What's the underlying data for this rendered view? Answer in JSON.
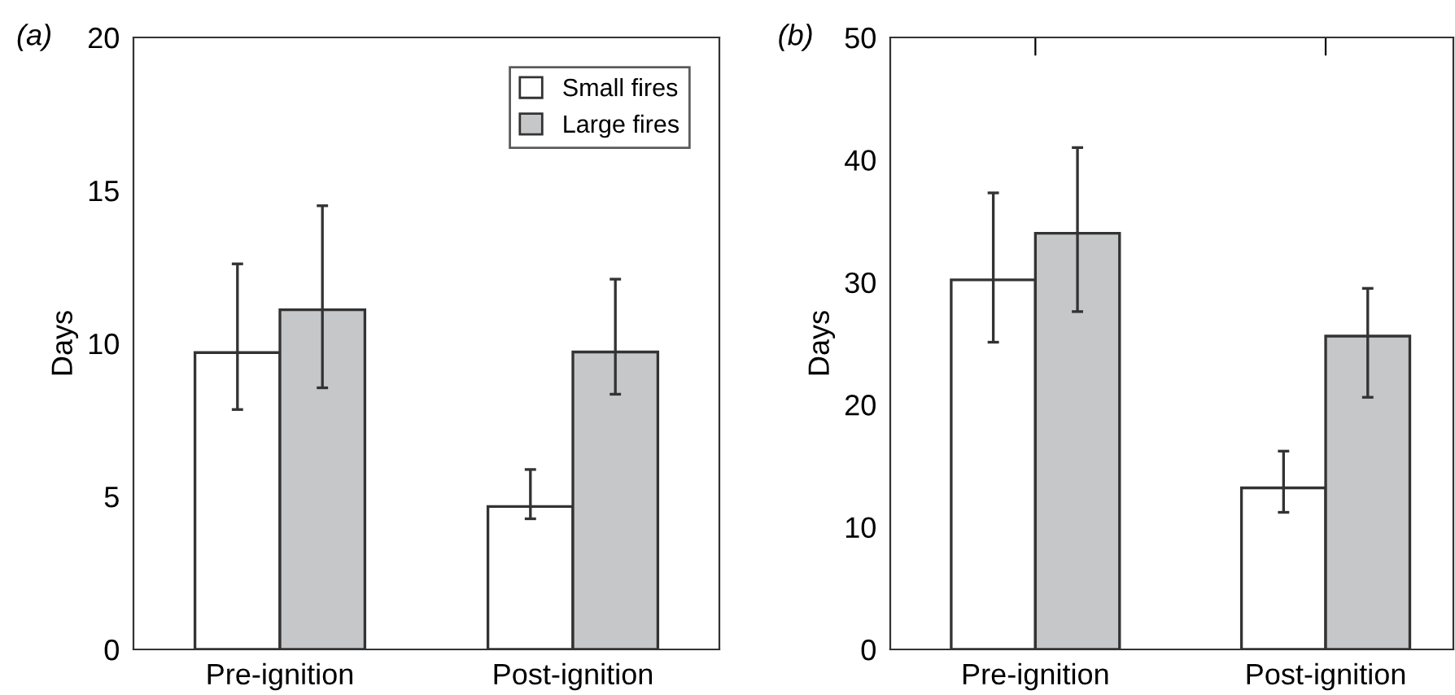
{
  "chart_data": [
    {
      "type": "bar",
      "ylabel": "Days",
      "annotations": [
        "(a)"
      ],
      "categories": [
        "Pre-ignition",
        "Post-ignition"
      ],
      "ylim": [
        0,
        20
      ],
      "yticks": [
        0,
        5,
        10,
        15,
        20
      ],
      "grid": false,
      "legend": "top right",
      "series": [
        {
          "name": "Small fires",
          "color": "#ffffff",
          "values": [
            9.7,
            4.67
          ],
          "errors": [
            [
              7.84,
              12.6
            ],
            [
              4.27,
              5.88
            ]
          ]
        },
        {
          "name": "Large fires",
          "color": "#c6c7c9",
          "values": [
            11.1,
            9.72
          ],
          "errors": [
            [
              8.55,
              14.5
            ],
            [
              8.34,
              12.1
            ]
          ]
        }
      ]
    },
    {
      "type": "bar",
      "ylabel": "Days",
      "annotations": [
        "(b)"
      ],
      "categories": [
        "Pre-ignition",
        "Post-ignition"
      ],
      "ylim": [
        0,
        50
      ],
      "yticks": [
        0,
        10,
        20,
        30,
        40,
        50
      ],
      "grid": false,
      "series": [
        {
          "color": "#ffffff",
          "values": [
            30.2,
            13.2
          ],
          "errors": [
            [
              25.1,
              37.3
            ],
            [
              11.2,
              16.2
            ]
          ]
        },
        {
          "color": "#c6c7c9",
          "values": [
            34.0,
            25.6
          ],
          "errors": [
            [
              27.6,
              41.0
            ],
            [
              20.6,
              29.5
            ]
          ]
        }
      ]
    }
  ]
}
